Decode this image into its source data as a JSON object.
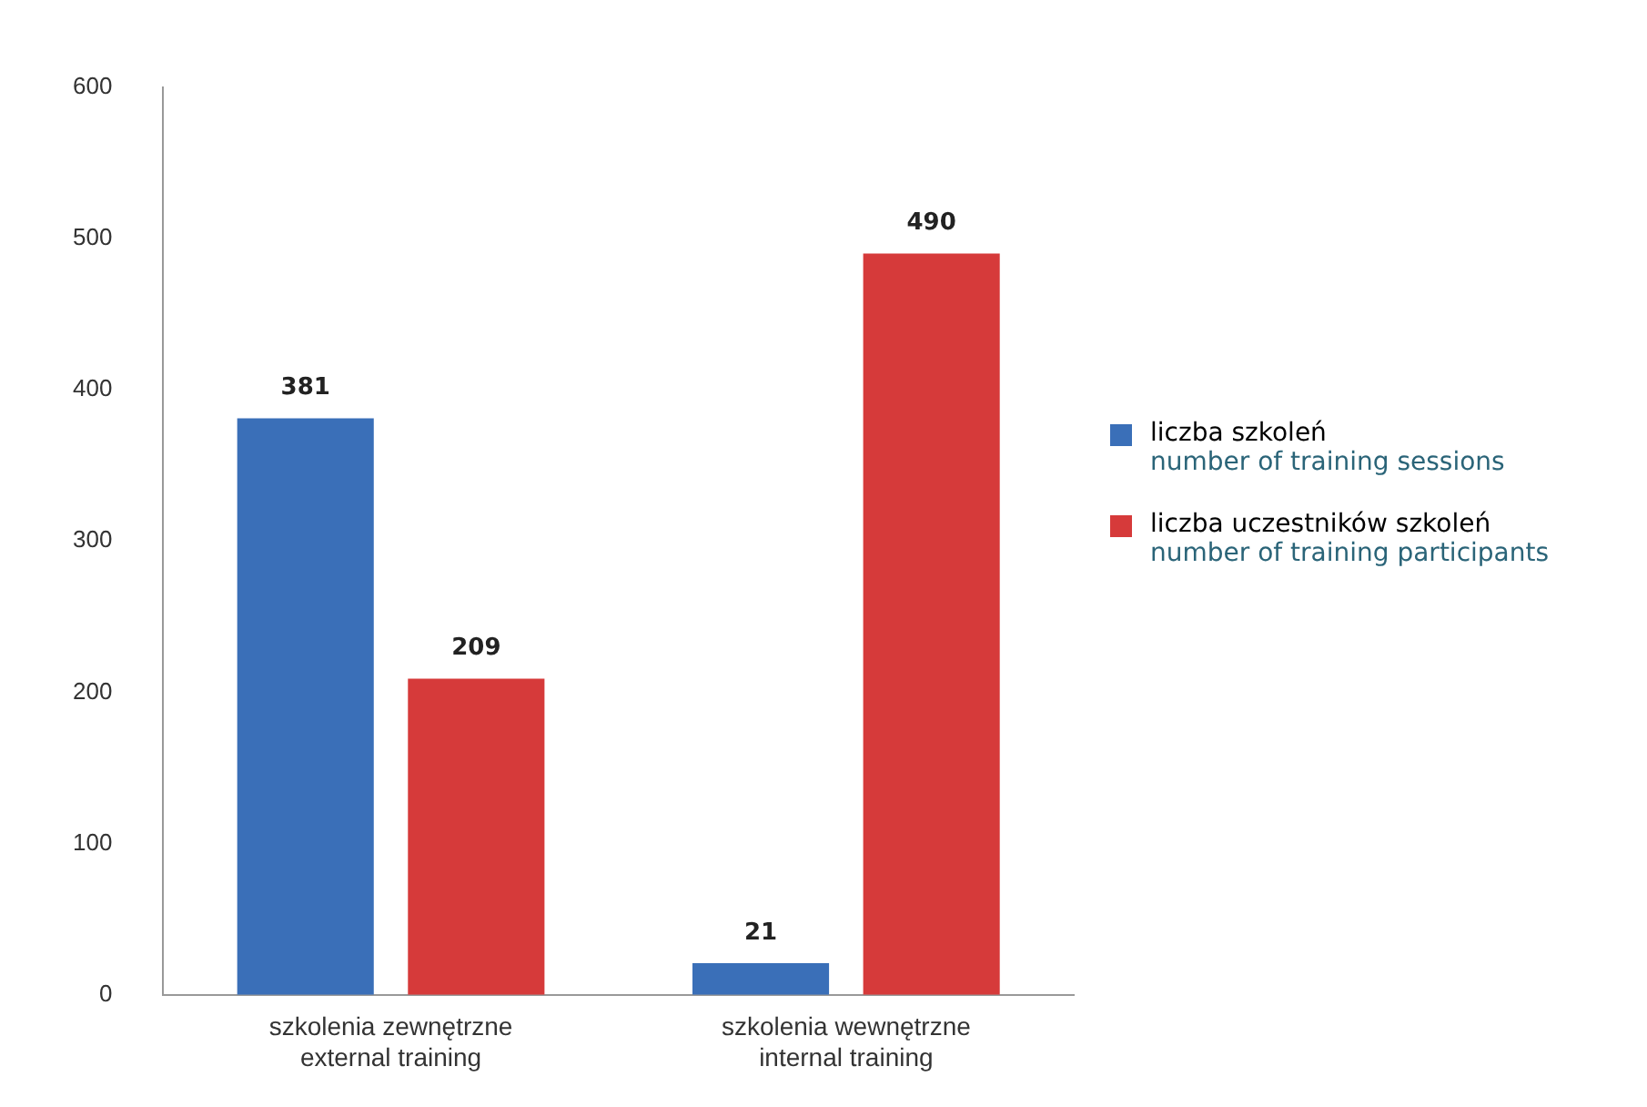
{
  "chart_data": {
    "type": "bar",
    "categories": [
      "szkolenia zewnętrzne\nexternal training",
      "szkolenia wewnętrzne\ninternal training"
    ],
    "series": [
      {
        "name": "liczba szkoleń\nnumber of training sessions",
        "color": "#3a6fb8",
        "values": [
          381,
          21
        ]
      },
      {
        "name": "liczba uczestników szkoleń\nnumber of training participants",
        "color": "#d63a3a",
        "values": [
          209,
          490
        ]
      }
    ],
    "ylim": [
      0,
      600
    ],
    "yticks": [
      0,
      100,
      200,
      300,
      400,
      500,
      600
    ],
    "grid": false,
    "legend": "right",
    "data_labels": true
  }
}
